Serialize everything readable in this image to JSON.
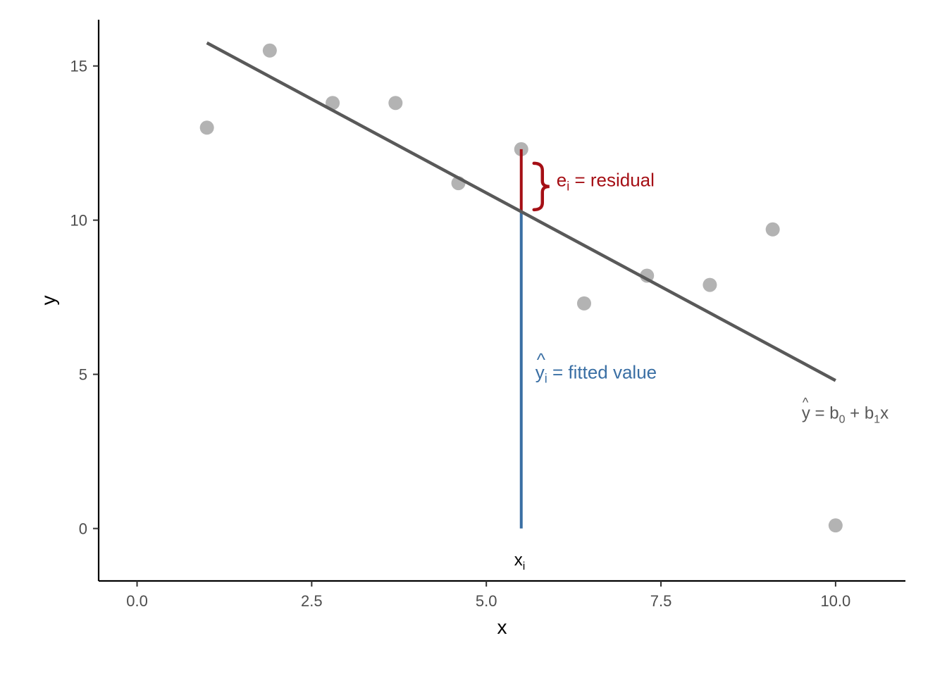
{
  "chart_data": {
    "type": "scatter",
    "title": "",
    "xlabel": "x",
    "ylabel": "y",
    "xlim": [
      -0.55,
      11.0
    ],
    "ylim": [
      -1.7,
      16.5
    ],
    "x_ticks": [
      0,
      2.5,
      5,
      7.5,
      10
    ],
    "x_tick_labels": [
      "0.0",
      "2.5",
      "5.0",
      "7.5",
      "10.0"
    ],
    "y_ticks": [
      0,
      5,
      10,
      15
    ],
    "y_tick_labels": [
      "0",
      "5",
      "10",
      "15"
    ],
    "grid": false,
    "points": {
      "x": [
        1.0,
        1.9,
        2.8,
        3.7,
        4.6,
        5.5,
        6.4,
        7.3,
        8.2,
        9.1,
        10.0
      ],
      "y": [
        13.0,
        15.5,
        13.8,
        13.8,
        11.2,
        12.3,
        7.3,
        8.2,
        7.9,
        9.7,
        0.1
      ]
    },
    "fit_line": {
      "x": [
        1.0,
        10.0
      ],
      "y": [
        15.75,
        4.8
      ]
    },
    "highlight": {
      "x": 5.5,
      "y_obs": 12.3,
      "y_fit": 10.27
    },
    "annotations": {
      "residual_sub": "i",
      "residual_base": "e",
      "residual_text": " = residual",
      "fitted_base": "y",
      "fitted_hat": "^",
      "fitted_sub": "i",
      "fitted_text": " = fitted value",
      "xi_base": "x",
      "xi_sub": "i",
      "eq_hat": "^",
      "eq_y": "y",
      "eq_eq": " = b",
      "eq_sub0": "0",
      "eq_plus": " + b",
      "eq_sub1": "1",
      "eq_x": "x"
    },
    "colors": {
      "points": "#b3b3b3",
      "fit_line": "#595959",
      "residual": "#a50f15",
      "fitted": "#3a6fa4",
      "axis": "#000000",
      "tick_label": "#4d4d4d"
    }
  }
}
